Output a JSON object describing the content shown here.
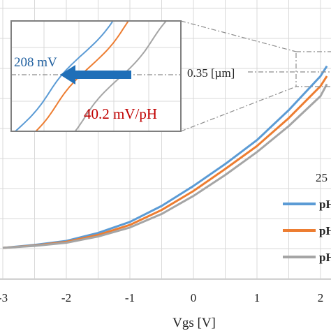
{
  "colors": {
    "series": [
      "#5b9bd5",
      "#ed7d31",
      "#a5a5a5"
    ],
    "grid": "#d9d9d9",
    "arrow": "#1f6fb8",
    "inset_border": "#7f7f7f",
    "ann_red": "#c00000",
    "ann_blue": "#1f5f9f"
  },
  "chart_data": {
    "type": "line",
    "xlabel": "Vgs [V]",
    "x_ticks": [
      "-3",
      "-2",
      "-1",
      "0",
      "1",
      "2"
    ],
    "xlim": [
      -3,
      2.1
    ],
    "ylim": [
      0,
      10
    ],
    "grid": true,
    "legend": {
      "placement": "right",
      "title": "25",
      "entries": [
        "pH",
        "pH",
        "pH"
      ]
    },
    "series": [
      {
        "color": "#5b9bd5",
        "x": [
          -3,
          -2.5,
          -2,
          -1.5,
          -1,
          -0.5,
          0,
          0.5,
          1,
          1.5,
          2,
          2.1
        ],
        "y": [
          0,
          0.15,
          0.35,
          0.75,
          1.3,
          2.1,
          3.1,
          4.2,
          5.4,
          6.9,
          8.6,
          9.1
        ]
      },
      {
        "color": "#ed7d31",
        "x": [
          -3,
          -2.5,
          -2,
          -1.5,
          -1,
          -0.5,
          0,
          0.5,
          1,
          1.5,
          2,
          2.1
        ],
        "y": [
          0,
          0.12,
          0.3,
          0.65,
          1.15,
          1.9,
          2.85,
          3.95,
          5.1,
          6.5,
          8.1,
          8.6
        ]
      },
      {
        "color": "#a5a5a5",
        "x": [
          -3,
          -2.5,
          -2,
          -1.5,
          -1,
          -0.5,
          0,
          0.5,
          1,
          1.5,
          2,
          2.1
        ],
        "y": [
          0,
          0.1,
          0.26,
          0.57,
          1.02,
          1.7,
          2.6,
          3.65,
          4.8,
          6.1,
          7.6,
          8.2
        ]
      }
    ],
    "inset": {
      "threshold_label": "0.35 [µm]",
      "shift_label": "208 mV",
      "sensitivity_label": "40.2 mV/pH"
    }
  }
}
